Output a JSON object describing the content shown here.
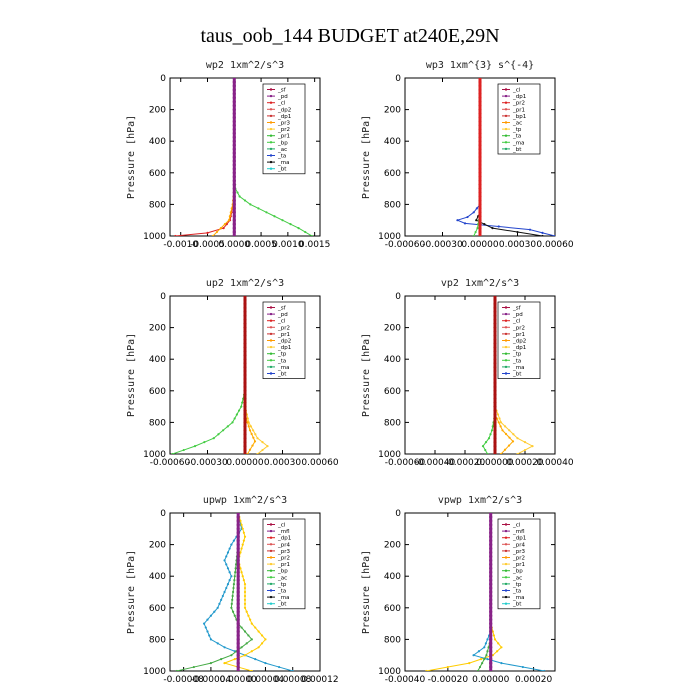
{
  "figure": {
    "title": "taus_oob_144  BUDGET at240E,29N"
  },
  "chart_data": [
    {
      "type": "line",
      "title": "wp2  1xm^2/s^3",
      "ylabel": "Pressure [hPa]",
      "ylim": [
        1000,
        0
      ],
      "xlim": [
        -0.0012,
        0.0016
      ],
      "yticks": [
        0,
        200,
        400,
        600,
        800,
        1000
      ],
      "xticks": [
        "-0.0010",
        "-0.0005",
        "0.0000",
        "0.0005",
        "0.0010",
        "0.0015"
      ],
      "xtick_values": [
        -0.001,
        -0.0005,
        0.0,
        0.0005,
        0.001,
        0.0015
      ],
      "legend": [
        "_sf",
        "_pd",
        "_cl",
        "_dp2",
        "_dp1",
        "_pr3",
        "_pr2",
        "_pr1",
        "_bp",
        "_ac",
        "_ta",
        "_ma",
        "_bt"
      ],
      "series": [
        {
          "name": "_pr1",
          "color": "#44cc44",
          "y": [
            0,
            600,
            700,
            750,
            800,
            850,
            900,
            950,
            1000
          ],
          "x": [
            0,
            0,
            2e-05,
            0.0001,
            0.0003,
            0.0006,
            0.0009,
            0.0012,
            0.00145
          ]
        },
        {
          "name": "_cl",
          "color": "#dd2222",
          "y": [
            0,
            700,
            800,
            900,
            950,
            980,
            1000
          ],
          "x": [
            0,
            0,
            -2e-05,
            -8e-05,
            -0.0002,
            -0.0005,
            -0.0011
          ]
        },
        {
          "name": "_pr2",
          "color": "#ffaa00",
          "y": [
            0,
            700,
            800,
            900,
            950,
            1000
          ],
          "x": [
            0,
            0,
            -3e-05,
            -0.0001,
            -0.00025,
            -0.0004
          ]
        },
        {
          "name": "_pd",
          "color": "#882288",
          "y": [
            0,
            1000
          ],
          "x": [
            0,
            0
          ]
        }
      ]
    },
    {
      "type": "line",
      "title": "wp3  1xm^{3} s^{-4}",
      "ylabel": "Pressure [hPa]",
      "ylim": [
        1000,
        0
      ],
      "xlim": [
        -0.0006,
        0.0006
      ],
      "yticks": [
        0,
        200,
        400,
        600,
        800,
        1000
      ],
      "xticks": [
        "-0.00060",
        "-0.00030",
        "0.00000",
        "0.00030",
        "0.00060"
      ],
      "xtick_values": [
        -0.0006,
        -0.0003,
        0,
        0.0003,
        0.0006
      ],
      "legend": [
        "_cl",
        "_dp1",
        "_pr2",
        "_pr1",
        "_bp1",
        "_ac",
        "_tp",
        "_ta",
        "_ma",
        "_bt"
      ],
      "series": [
        {
          "name": "_tp",
          "color": "#2244cc",
          "y": [
            0,
            800,
            850,
            880,
            900,
            920,
            940,
            960,
            1000
          ],
          "x": [
            0,
            0,
            -5e-05,
            -0.0001,
            -0.00018,
            -0.00012,
            0.00015,
            0.0004,
            0.0006
          ]
        },
        {
          "name": "_ta",
          "color": "#111111",
          "y": [
            0,
            850,
            900,
            950,
            1000
          ],
          "x": [
            0,
            0,
            -3e-05,
            0.0001,
            0.0005
          ]
        },
        {
          "name": "_bp1",
          "color": "#44cc44",
          "y": [
            0,
            850,
            950,
            1000
          ],
          "x": [
            0,
            0,
            -2e-05,
            -5e-05
          ]
        },
        {
          "name": "_cl",
          "color": "#dd2222",
          "y": [
            0,
            1000
          ],
          "x": [
            0,
            0
          ]
        }
      ]
    },
    {
      "type": "line",
      "title": "up2  1xm^2/s^3",
      "ylabel": "Pressure [hPa]",
      "ylim": [
        1000,
        0
      ],
      "xlim": [
        -0.0006,
        0.0006
      ],
      "yticks": [
        0,
        200,
        400,
        600,
        800,
        1000
      ],
      "xticks": [
        "-0.00060",
        "-0.00030",
        "0.00000",
        "0.00030",
        "0.00060"
      ],
      "xtick_values": [
        -0.0006,
        -0.0003,
        0,
        0.0003,
        0.0006
      ],
      "legend": [
        "_sf",
        "_pd",
        "_cl",
        "_pr2",
        "_pr1",
        "_dp2",
        "_dp1",
        "_tp",
        "_ta",
        "_ma",
        "_bt"
      ],
      "series": [
        {
          "name": "_dp1",
          "color": "#44cc44",
          "y": [
            0,
            600,
            700,
            800,
            900,
            950,
            1000
          ],
          "x": [
            0,
            0,
            -3e-05,
            -0.0001,
            -0.00025,
            -0.0004,
            -0.00058
          ]
        },
        {
          "name": "_pr1",
          "color": "#ffcc33",
          "y": [
            0,
            700,
            800,
            900,
            950,
            1000
          ],
          "x": [
            0,
            0,
            3e-05,
            0.0001,
            0.00018,
            0.0001
          ]
        },
        {
          "name": "_pr2",
          "color": "#ffaa00",
          "y": [
            0,
            750,
            850,
            920,
            1000
          ],
          "x": [
            0,
            0,
            4e-05,
            8e-05,
            2e-05
          ]
        },
        {
          "name": "_cl",
          "color": "#aa1111",
          "y": [
            0,
            1000
          ],
          "x": [
            0,
            0
          ]
        }
      ]
    },
    {
      "type": "line",
      "title": "vp2  1xm^2/s^3",
      "ylabel": "Pressure [hPa]",
      "ylim": [
        1000,
        0
      ],
      "xlim": [
        -0.0006,
        0.0004
      ],
      "yticks": [
        0,
        200,
        400,
        600,
        800,
        1000
      ],
      "xticks": [
        "-0.00060",
        "-0.00040",
        "-0.00020",
        "0.00000",
        "0.00020",
        "0.00040"
      ],
      "xtick_values": [
        -0.0006,
        -0.0004,
        -0.0002,
        0,
        0.0002,
        0.0004
      ],
      "legend": [
        "_sf",
        "_pd",
        "_cl",
        "_pr2",
        "_pr1",
        "_dp2",
        "_dp1",
        "_tp",
        "_ta",
        "_ma",
        "_bt"
      ],
      "series": [
        {
          "name": "_dp1",
          "color": "#44cc44",
          "y": [
            0,
            750,
            850,
            900,
            950,
            1000
          ],
          "x": [
            0,
            0,
            -2e-05,
            -4e-05,
            -8e-05,
            -5e-05
          ]
        },
        {
          "name": "_pr1",
          "color": "#ffcc33",
          "y": [
            0,
            700,
            800,
            900,
            950,
            1000
          ],
          "x": [
            0,
            0,
            4e-05,
            0.00015,
            0.00025,
            0.00015
          ]
        },
        {
          "name": "_pr2",
          "color": "#ffaa00",
          "y": [
            0,
            750,
            850,
            920,
            1000
          ],
          "x": [
            0,
            0,
            5e-05,
            0.00012,
            4e-05
          ]
        },
        {
          "name": "_cl",
          "color": "#aa1111",
          "y": [
            0,
            1000
          ],
          "x": [
            0,
            0
          ]
        }
      ]
    },
    {
      "type": "line",
      "title": "upwp  1xm^2/s^3",
      "ylabel": "Pressure [hPa]",
      "ylim": [
        1000,
        0
      ],
      "xlim": [
        -0.0001,
        0.00012
      ],
      "yticks": [
        0,
        200,
        400,
        600,
        800,
        1000
      ],
      "xticks": [
        "-0.00008",
        "-0.00004",
        "0.00000",
        "0.00004",
        "0.00008",
        "0.00012"
      ],
      "xtick_values": [
        -8e-05,
        -4e-05,
        0,
        4e-05,
        8e-05,
        0.00012
      ],
      "legend": [
        "_cl",
        "_mfl",
        "_dp1",
        "_pr4",
        "_pr3",
        "_pr2",
        "_pr1",
        "_bp",
        "_ac",
        "_tp",
        "_ta",
        "_ma",
        "_bt"
      ],
      "series": [
        {
          "name": "_tp",
          "color": "#2299cc",
          "y": [
            0,
            100,
            200,
            300,
            400,
            500,
            600,
            700,
            800,
            850,
            900,
            950,
            1000
          ],
          "x": [
            0,
            5e-06,
            -1e-05,
            -2e-05,
            -1e-05,
            -2e-05,
            -3e-05,
            -5e-05,
            -4e-05,
            -2e-05,
            1e-05,
            4e-05,
            8e-05
          ]
        },
        {
          "name": "_pr2",
          "color": "#ffcc00",
          "y": [
            0,
            150,
            300,
            450,
            600,
            700,
            800,
            850,
            900,
            950,
            1000
          ],
          "x": [
            0,
            1e-05,
            0,
            1e-05,
            1e-05,
            2e-05,
            4e-05,
            3e-05,
            1e-05,
            -2e-05,
            2e-05
          ]
        },
        {
          "name": "_bp",
          "color": "#44aa44",
          "y": [
            0,
            200,
            400,
            600,
            700,
            800,
            900,
            950,
            1000
          ],
          "x": [
            0,
            0,
            -5e-06,
            -1e-05,
            0,
            2e-05,
            -1e-05,
            -4e-05,
            -9e-05
          ]
        },
        {
          "name": "_cl",
          "color": "#882288",
          "y": [
            0,
            1000
          ],
          "x": [
            0,
            0
          ]
        }
      ]
    },
    {
      "type": "line",
      "title": "vpwp  1xm^2/s^3",
      "ylabel": "Pressure [hPa]",
      "ylim": [
        1000,
        0
      ],
      "xlim": [
        -0.0004,
        0.0003
      ],
      "yticks": [
        0,
        200,
        400,
        600,
        800,
        1000
      ],
      "xticks": [
        "-0.00040",
        "-0.00020",
        "0.00000",
        "0.00020"
      ],
      "xtick_values": [
        -0.0004,
        -0.0002,
        0,
        0.0002
      ],
      "legend": [
        "_cl",
        "_mfl",
        "_dp1",
        "_pr4",
        "_pr3",
        "_pr2",
        "_pr1",
        "_bp",
        "_ac",
        "_tp",
        "_ta",
        "_ma",
        "_bt"
      ],
      "series": [
        {
          "name": "_pr1",
          "color": "#ffcc00",
          "y": [
            0,
            700,
            800,
            850,
            900,
            950,
            1000
          ],
          "x": [
            0,
            0,
            2e-05,
            5e-05,
            1e-05,
            -0.0001,
            -0.0003
          ]
        },
        {
          "name": "_tp",
          "color": "#2299cc",
          "y": [
            0,
            750,
            850,
            900,
            950,
            1000
          ],
          "x": [
            0,
            0,
            -3e-05,
            -8e-05,
            5e-05,
            0.00025
          ]
        },
        {
          "name": "_bp",
          "color": "#44aa44",
          "y": [
            0,
            800,
            900,
            1000
          ],
          "x": [
            0,
            0,
            -2e-05,
            -6e-05
          ]
        },
        {
          "name": "_cl",
          "color": "#882288",
          "y": [
            0,
            1000
          ],
          "x": [
            0,
            0
          ]
        }
      ]
    }
  ]
}
